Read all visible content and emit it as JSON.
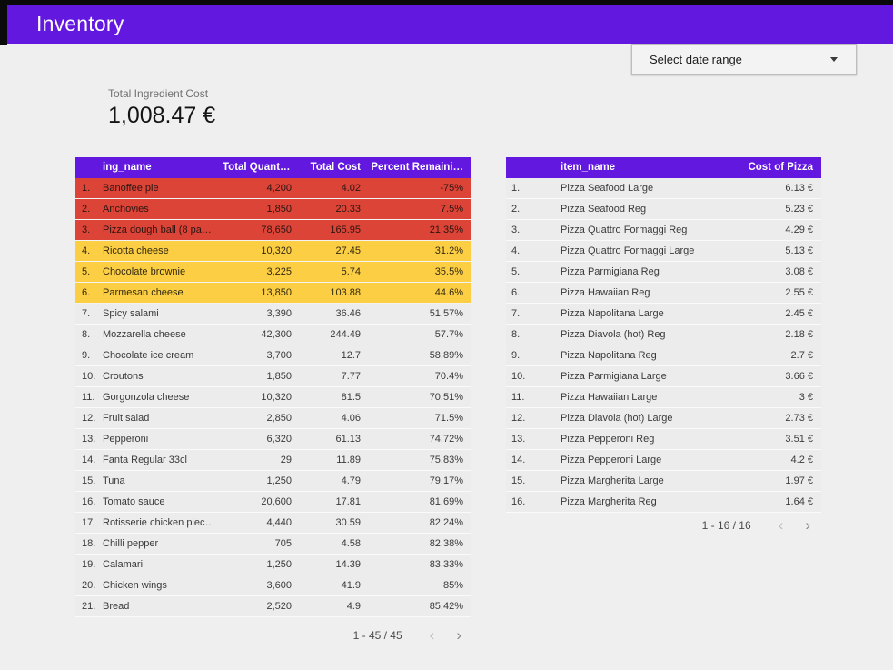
{
  "header": {
    "title": "Inventory"
  },
  "date_selector": {
    "label": "Select date range"
  },
  "scorecard": {
    "label": "Total Ingredient Cost",
    "value": "1,008.47 €"
  },
  "colors": {
    "accent_purple": "#6318E0",
    "negative_red": "#DB4437",
    "warning_yellow": "#FBCE44",
    "page_background": "#EFEFEF",
    "row_background": "#ECECEC"
  },
  "ingredients_table": {
    "columns": [
      "ing_name",
      "Total Quantity",
      "Total Cost",
      "Percent Remaini…"
    ],
    "rows": [
      {
        "idx": "1.",
        "name": "Banoffee pie",
        "qty": "4,200",
        "cost": "4.02",
        "pct": "-75%",
        "highlight": "red"
      },
      {
        "idx": "2.",
        "name": "Anchovies",
        "qty": "1,850",
        "cost": "20.33",
        "pct": "7.5%",
        "highlight": "red"
      },
      {
        "idx": "3.",
        "name": "Pizza dough ball (8 pa…",
        "qty": "78,650",
        "cost": "165.95",
        "pct": "21.35%",
        "highlight": "red"
      },
      {
        "idx": "4.",
        "name": "Ricotta cheese",
        "qty": "10,320",
        "cost": "27.45",
        "pct": "31.2%",
        "highlight": "yellow"
      },
      {
        "idx": "5.",
        "name": "Chocolate brownie",
        "qty": "3,225",
        "cost": "5.74",
        "pct": "35.5%",
        "highlight": "yellow"
      },
      {
        "idx": "6.",
        "name": "Parmesan cheese",
        "qty": "13,850",
        "cost": "103.88",
        "pct": "44.6%",
        "highlight": "yellow"
      },
      {
        "idx": "7.",
        "name": "Spicy salami",
        "qty": "3,390",
        "cost": "36.46",
        "pct": "51.57%",
        "highlight": "none"
      },
      {
        "idx": "8.",
        "name": "Mozzarella cheese",
        "qty": "42,300",
        "cost": "244.49",
        "pct": "57.7%",
        "highlight": "none"
      },
      {
        "idx": "9.",
        "name": "Chocolate ice cream",
        "qty": "3,700",
        "cost": "12.7",
        "pct": "58.89%",
        "highlight": "none"
      },
      {
        "idx": "10.",
        "name": "Croutons",
        "qty": "1,850",
        "cost": "7.77",
        "pct": "70.4%",
        "highlight": "none"
      },
      {
        "idx": "11.",
        "name": "Gorgonzola cheese",
        "qty": "10,320",
        "cost": "81.5",
        "pct": "70.51%",
        "highlight": "none"
      },
      {
        "idx": "12.",
        "name": "Fruit salad",
        "qty": "2,850",
        "cost": "4.06",
        "pct": "71.5%",
        "highlight": "none"
      },
      {
        "idx": "13.",
        "name": "Pepperoni",
        "qty": "6,320",
        "cost": "61.13",
        "pct": "74.72%",
        "highlight": "none"
      },
      {
        "idx": "14.",
        "name": "Fanta Regular 33cl",
        "qty": "29",
        "cost": "11.89",
        "pct": "75.83%",
        "highlight": "none"
      },
      {
        "idx": "15.",
        "name": "Tuna",
        "qty": "1,250",
        "cost": "4.79",
        "pct": "79.17%",
        "highlight": "none"
      },
      {
        "idx": "16.",
        "name": "Tomato sauce",
        "qty": "20,600",
        "cost": "17.81",
        "pct": "81.69%",
        "highlight": "none"
      },
      {
        "idx": "17.",
        "name": "Rotisserie chicken piec…",
        "qty": "4,440",
        "cost": "30.59",
        "pct": "82.24%",
        "highlight": "none"
      },
      {
        "idx": "18.",
        "name": "Chilli pepper",
        "qty": "705",
        "cost": "4.58",
        "pct": "82.38%",
        "highlight": "none"
      },
      {
        "idx": "19.",
        "name": "Calamari",
        "qty": "1,250",
        "cost": "14.39",
        "pct": "83.33%",
        "highlight": "none"
      },
      {
        "idx": "20.",
        "name": "Chicken wings",
        "qty": "3,600",
        "cost": "41.9",
        "pct": "85%",
        "highlight": "none"
      },
      {
        "idx": "21.",
        "name": "Bread",
        "qty": "2,520",
        "cost": "4.9",
        "pct": "85.42%",
        "highlight": "none"
      }
    ],
    "pagination": {
      "label": "1 - 45 / 45",
      "prev": "‹",
      "next": "›"
    }
  },
  "pizza_table": {
    "columns": [
      "item_name",
      "Cost of Pizza"
    ],
    "rows": [
      {
        "idx": "1.",
        "name": "Pizza Seafood Large",
        "cost": "6.13 €"
      },
      {
        "idx": "2.",
        "name": "Pizza Seafood Reg",
        "cost": "5.23 €"
      },
      {
        "idx": "3.",
        "name": "Pizza Quattro Formaggi Reg",
        "cost": "4.29 €"
      },
      {
        "idx": "4.",
        "name": "Pizza Quattro Formaggi Large",
        "cost": "5.13 €"
      },
      {
        "idx": "5.",
        "name": "Pizza Parmigiana Reg",
        "cost": "3.08 €"
      },
      {
        "idx": "6.",
        "name": "Pizza Hawaiian Reg",
        "cost": "2.55 €"
      },
      {
        "idx": "7.",
        "name": "Pizza Napolitana Large",
        "cost": "2.45 €"
      },
      {
        "idx": "8.",
        "name": "Pizza Diavola (hot) Reg",
        "cost": "2.18 €"
      },
      {
        "idx": "9.",
        "name": "Pizza Napolitana Reg",
        "cost": "2.7 €"
      },
      {
        "idx": "10.",
        "name": "Pizza Parmigiana Large",
        "cost": "3.66 €"
      },
      {
        "idx": "11.",
        "name": "Pizza Hawaiian Large",
        "cost": "3 €"
      },
      {
        "idx": "12.",
        "name": "Pizza Diavola (hot) Large",
        "cost": "2.73 €"
      },
      {
        "idx": "13.",
        "name": "Pizza Pepperoni Reg",
        "cost": "3.51 €"
      },
      {
        "idx": "14.",
        "name": "Pizza Pepperoni Large",
        "cost": "4.2 €"
      },
      {
        "idx": "15.",
        "name": "Pizza Margherita Large",
        "cost": "1.97 €"
      },
      {
        "idx": "16.",
        "name": "Pizza Margherita Reg",
        "cost": "1.64 €"
      }
    ],
    "pagination": {
      "label": "1 - 16 / 16",
      "prev": "‹",
      "next": "›"
    }
  }
}
